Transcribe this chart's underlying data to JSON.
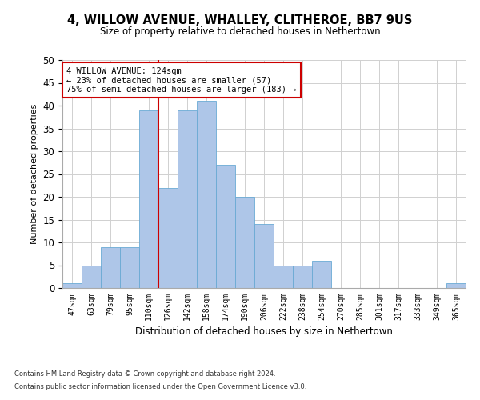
{
  "title1": "4, WILLOW AVENUE, WHALLEY, CLITHEROE, BB7 9US",
  "title2": "Size of property relative to detached houses in Nethertown",
  "xlabel": "Distribution of detached houses by size in Nethertown",
  "ylabel": "Number of detached properties",
  "categories": [
    "47sqm",
    "63sqm",
    "79sqm",
    "95sqm",
    "110sqm",
    "126sqm",
    "142sqm",
    "158sqm",
    "174sqm",
    "190sqm",
    "206sqm",
    "222sqm",
    "238sqm",
    "254sqm",
    "270sqm",
    "285sqm",
    "301sqm",
    "317sqm",
    "333sqm",
    "349sqm",
    "365sqm"
  ],
  "values": [
    1,
    5,
    9,
    9,
    39,
    22,
    39,
    41,
    27,
    20,
    14,
    5,
    5,
    6,
    0,
    0,
    0,
    0,
    0,
    0,
    1
  ],
  "bar_color": "#aec6e8",
  "bar_edge_color": "#6aaad4",
  "vline_x_index": 5,
  "vline_color": "#cc0000",
  "ylim": [
    0,
    50
  ],
  "yticks": [
    0,
    5,
    10,
    15,
    20,
    25,
    30,
    35,
    40,
    45,
    50
  ],
  "annotation_text": "4 WILLOW AVENUE: 124sqm\n← 23% of detached houses are smaller (57)\n75% of semi-detached houses are larger (183) →",
  "annotation_box_color": "#ffffff",
  "annotation_box_edge": "#cc0000",
  "footer1": "Contains HM Land Registry data © Crown copyright and database right 2024.",
  "footer2": "Contains public sector information licensed under the Open Government Licence v3.0.",
  "bg_color": "#ffffff",
  "grid_color": "#d0d0d0"
}
